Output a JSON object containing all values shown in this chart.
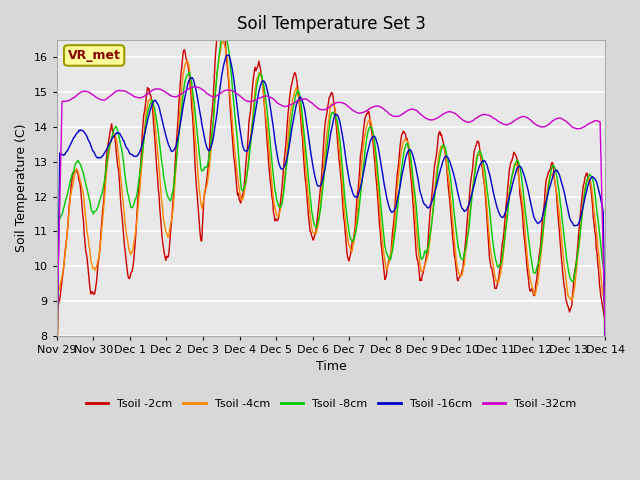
{
  "title": "Soil Temperature Set 3",
  "xlabel": "Time",
  "ylabel": "Soil Temperature (C)",
  "ylim": [
    8.0,
    16.5
  ],
  "yticks": [
    8.0,
    9.0,
    10.0,
    11.0,
    12.0,
    13.0,
    14.0,
    15.0,
    16.0
  ],
  "line_colors": [
    "#cc0000",
    "#ff8800",
    "#00cc00",
    "#0000cc",
    "#cc00cc"
  ],
  "line_labels": [
    "Tsoil -2cm",
    "Tsoil -4cm",
    "Tsoil -8cm",
    "Tsoil -16cm",
    "Tsoil -32cm"
  ],
  "legend_label": "VR_met",
  "n_days": 15,
  "points_per_day": 48,
  "x_tick_labels": [
    "Nov 29",
    "Nov 30",
    "Dec 1",
    "Dec 2",
    "Dec 3",
    "Dec 4",
    "Dec 5",
    "Dec 6",
    "Dec 7",
    "Dec 8",
    "Dec 9",
    "Dec 10",
    "Dec 11",
    "Dec 12",
    "Dec 13",
    "Dec 14"
  ]
}
